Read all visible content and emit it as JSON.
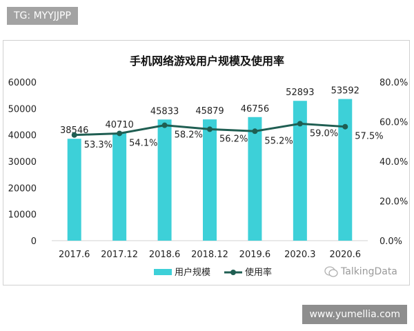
{
  "badge": {
    "text": "TG: MYYJJPP"
  },
  "watermark": {
    "text": "www.yumellia.com"
  },
  "source": {
    "text": "TalkingData"
  },
  "colors": {
    "bar": "#3dd0d8",
    "line": "#1f5e52",
    "axis_text": "#222222"
  },
  "chart_data": {
    "type": "bar",
    "title": "手机网络游戏用户规模及使用率",
    "categories": [
      "2017.6",
      "2017.12",
      "2018.6",
      "2018.12",
      "2019.6",
      "2020.3",
      "2020.6"
    ],
    "series": [
      {
        "name": "用户规模",
        "type": "bar",
        "axis": "left",
        "values": [
          38546,
          40710,
          45833,
          45879,
          46756,
          52893,
          53592
        ],
        "labels": [
          "38546",
          "40710",
          "45833",
          "45879",
          "46756",
          "52893",
          "53592"
        ]
      },
      {
        "name": "使用率",
        "type": "line",
        "axis": "right",
        "values": [
          53.3,
          54.1,
          58.2,
          56.2,
          55.2,
          59.0,
          57.5
        ],
        "labels": [
          "53.3%",
          "54.1%",
          "58.2%",
          "56.2%",
          "55.2%",
          "59.0%",
          "57.5%"
        ]
      }
    ],
    "y_left": {
      "ylim": [
        0,
        60000
      ],
      "ticks": [
        "0",
        "10000",
        "20000",
        "30000",
        "40000",
        "50000",
        "60000"
      ]
    },
    "y_right": {
      "ylim": [
        0,
        80
      ],
      "ticks": [
        "0.0%",
        "20.0%",
        "40.0%",
        "60.0%",
        "80.0%"
      ]
    },
    "legend": {
      "placement": "bottom",
      "items": [
        "用户规模",
        "使用率"
      ]
    },
    "grid": false
  }
}
